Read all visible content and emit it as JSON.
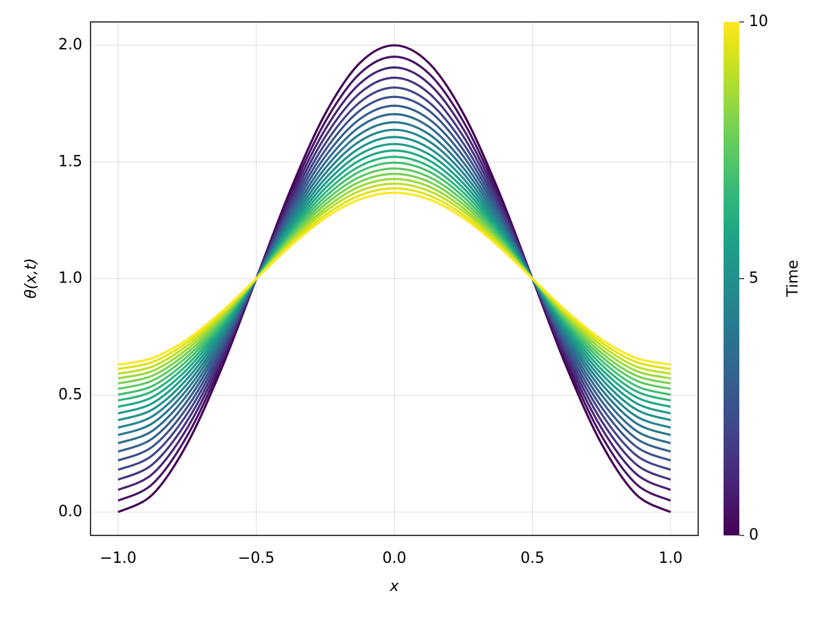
{
  "chart_data": {
    "type": "line",
    "xlabel": "x",
    "ylabel": "θ(x,t)",
    "x": [
      -1,
      -0.875,
      -0.75,
      -0.625,
      -0.5,
      -0.375,
      -0.25,
      -0.125,
      0,
      0.125,
      0.25,
      0.375,
      0.5,
      0.625,
      0.75,
      0.875,
      1
    ],
    "xlim": [
      -1.1,
      1.1
    ],
    "xticks": [
      {
        "value": -1,
        "label": "−1.0"
      },
      {
        "value": -0.5,
        "label": "−0.5"
      },
      {
        "value": 0,
        "label": "0.0"
      },
      0.5,
      {
        "value": 1,
        "label": "1.0"
      }
    ],
    "ylim": [
      -0.1,
      2.1
    ],
    "yticks": [
      {
        "value": 0,
        "label": "0.0"
      },
      0.5,
      {
        "value": 1,
        "label": "1.0"
      },
      1.5,
      {
        "value": 2,
        "label": "2.0"
      }
    ],
    "grid": true,
    "series": [
      {
        "color": "#440154",
        "values": [
          0,
          0.076,
          0.293,
          0.617,
          1,
          1.383,
          1.707,
          1.924,
          2,
          1.924,
          1.707,
          1.383,
          1,
          0.617,
          0.293,
          0.076,
          0
        ]
      },
      {
        "color": "#471365",
        "values": [
          0.049,
          0.121,
          0.327,
          0.636,
          1,
          1.364,
          1.673,
          1.879,
          1.951,
          1.879,
          1.673,
          1.364,
          1,
          0.636,
          0.327,
          0.121,
          0.049
        ]
      },
      {
        "color": "#482475",
        "values": [
          0.095,
          0.164,
          0.36,
          0.654,
          1,
          1.346,
          1.64,
          1.836,
          1.905,
          1.836,
          1.64,
          1.346,
          1,
          0.654,
          0.36,
          0.164,
          0.095
        ]
      },
      {
        "color": "#463480",
        "values": [
          0.139,
          0.205,
          0.391,
          0.671,
          1,
          1.329,
          1.609,
          1.795,
          1.861,
          1.795,
          1.609,
          1.329,
          1,
          0.671,
          0.391,
          0.205,
          0.139
        ]
      },
      {
        "color": "#414487",
        "values": [
          0.181,
          0.244,
          0.421,
          0.687,
          1,
          1.313,
          1.579,
          1.756,
          1.819,
          1.756,
          1.579,
          1.313,
          1,
          0.687,
          0.421,
          0.244,
          0.181
        ]
      },
      {
        "color": "#3b528b",
        "values": [
          0.221,
          0.281,
          0.449,
          0.702,
          1,
          1.298,
          1.551,
          1.72,
          1.779,
          1.72,
          1.551,
          1.298,
          1,
          0.702,
          0.449,
          0.281,
          0.221
        ]
      },
      {
        "color": "#355f8d",
        "values": [
          0.259,
          0.316,
          0.476,
          0.717,
          1,
          1.284,
          1.524,
          1.684,
          1.741,
          1.684,
          1.524,
          1.284,
          1,
          0.717,
          0.476,
          0.316,
          0.259
        ]
      },
      {
        "color": "#2f6c8e",
        "values": [
          0.295,
          0.349,
          0.502,
          0.73,
          1,
          1.27,
          1.498,
          1.651,
          1.705,
          1.651,
          1.498,
          1.27,
          1,
          0.73,
          0.502,
          0.349,
          0.295
        ]
      },
      {
        "color": "#2a788e",
        "values": [
          0.33,
          0.381,
          0.526,
          0.744,
          1,
          1.257,
          1.474,
          1.619,
          1.67,
          1.619,
          1.474,
          1.257,
          1,
          0.744,
          0.526,
          0.381,
          0.33
        ]
      },
      {
        "color": "#25848e",
        "values": [
          0.362,
          0.411,
          0.549,
          0.756,
          1,
          1.244,
          1.451,
          1.589,
          1.638,
          1.589,
          1.451,
          1.244,
          1,
          0.756,
          0.549,
          0.411,
          0.362
        ]
      },
      {
        "color": "#21918c",
        "values": [
          0.394,
          0.44,
          0.571,
          0.768,
          1,
          1.232,
          1.429,
          1.56,
          1.607,
          1.56,
          1.429,
          1.232,
          1,
          0.768,
          0.571,
          0.44,
          0.394
        ]
      },
      {
        "color": "#1e9c89",
        "values": [
          0.423,
          0.467,
          0.592,
          0.779,
          1,
          1.221,
          1.408,
          1.533,
          1.577,
          1.533,
          1.408,
          1.221,
          1,
          0.779,
          0.592,
          0.467,
          0.423
        ]
      },
      {
        "color": "#22a884",
        "values": [
          0.451,
          0.493,
          0.612,
          0.79,
          1,
          1.21,
          1.388,
          1.507,
          1.549,
          1.507,
          1.388,
          1.21,
          1,
          0.79,
          0.612,
          0.493,
          0.451
        ]
      },
      {
        "color": "#2fb47c",
        "values": [
          0.478,
          0.518,
          0.631,
          0.8,
          1,
          1.2,
          1.369,
          1.482,
          1.522,
          1.482,
          1.369,
          1.2,
          1,
          0.8,
          0.631,
          0.518,
          0.478
        ]
      },
      {
        "color": "#44bf70",
        "values": [
          0.503,
          0.541,
          0.649,
          0.81,
          1,
          1.19,
          1.351,
          1.459,
          1.497,
          1.459,
          1.351,
          1.19,
          1,
          0.81,
          0.649,
          0.541,
          0.503
        ]
      },
      {
        "color": "#5ec962",
        "values": [
          0.528,
          0.564,
          0.666,
          0.819,
          1,
          1.181,
          1.334,
          1.436,
          1.472,
          1.436,
          1.334,
          1.181,
          1,
          0.819,
          0.666,
          0.564,
          0.528
        ]
      },
      {
        "color": "#7ad151",
        "values": [
          0.551,
          0.585,
          0.682,
          0.828,
          1,
          1.172,
          1.318,
          1.415,
          1.449,
          1.415,
          1.318,
          1.172,
          1,
          0.828,
          0.682,
          0.585,
          0.551
        ]
      },
      {
        "color": "#9bd93c",
        "values": [
          0.573,
          0.605,
          0.698,
          0.836,
          1,
          1.164,
          1.302,
          1.395,
          1.427,
          1.395,
          1.302,
          1.164,
          1,
          0.836,
          0.698,
          0.605,
          0.573
        ]
      },
      {
        "color": "#bddf26",
        "values": [
          0.593,
          0.624,
          0.713,
          0.844,
          1,
          1.156,
          1.288,
          1.376,
          1.407,
          1.376,
          1.288,
          1.156,
          1,
          0.844,
          0.713,
          0.624,
          0.593
        ]
      },
      {
        "color": "#dfe318",
        "values": [
          0.613,
          0.643,
          0.727,
          0.852,
          1,
          1.148,
          1.273,
          1.357,
          1.387,
          1.357,
          1.273,
          1.148,
          1,
          0.852,
          0.727,
          0.643,
          0.613
        ]
      },
      {
        "color": "#fde725",
        "values": [
          0.632,
          0.66,
          0.74,
          0.859,
          1,
          1.141,
          1.26,
          1.34,
          1.368,
          1.34,
          1.26,
          1.141,
          1,
          0.859,
          0.74,
          0.66,
          0.632
        ]
      }
    ],
    "colorbar": {
      "label": "Time",
      "lim": [
        0,
        10
      ],
      "ticks": [
        0,
        5,
        10
      ]
    }
  }
}
